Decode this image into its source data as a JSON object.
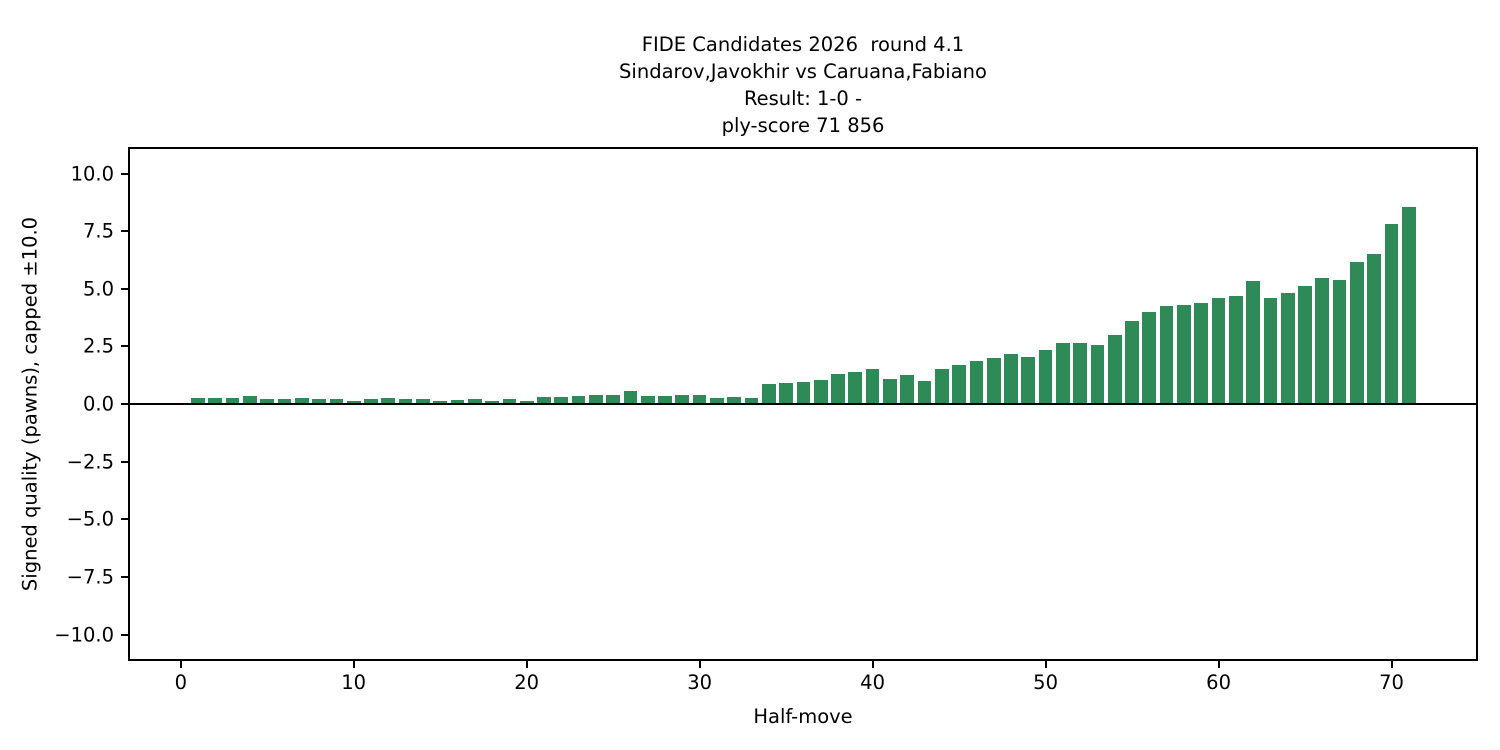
{
  "chart_data": {
    "type": "bar",
    "title_lines": [
      "FIDE Candidates 2026  round 4.1",
      "Sindarov,Javokhir vs Caruana,Fabiano",
      "Result: 1-0 -",
      "ply-score 71 856"
    ],
    "xlabel": "Half-move",
    "ylabel": "Signed quality (pawns), capped ±10.0",
    "x_start": 1,
    "values": [
      0.25,
      0.25,
      0.28,
      0.35,
      0.22,
      0.22,
      0.28,
      0.22,
      0.2,
      0.15,
      0.2,
      0.28,
      0.2,
      0.22,
      0.12,
      0.18,
      0.2,
      0.15,
      0.2,
      0.15,
      0.3,
      0.3,
      0.36,
      0.41,
      0.4,
      0.55,
      0.35,
      0.36,
      0.4,
      0.41,
      0.28,
      0.3,
      0.26,
      0.85,
      0.9,
      0.95,
      1.05,
      1.3,
      1.4,
      1.5,
      1.1,
      1.25,
      1.0,
      1.5,
      1.7,
      1.85,
      2.0,
      2.15,
      2.05,
      2.35,
      2.65,
      2.65,
      2.55,
      3.0,
      3.6,
      4.0,
      4.25,
      4.3,
      4.4,
      4.6,
      4.7,
      5.35,
      4.6,
      4.8,
      5.1,
      5.45,
      5.4,
      6.15,
      6.5,
      7.8,
      8.55
    ],
    "xticks": [
      0,
      10,
      20,
      30,
      40,
      50,
      60,
      70
    ],
    "yticks": [
      10.0,
      7.5,
      5.0,
      2.5,
      0.0,
      -2.5,
      -5.0,
      -7.5,
      -10.0
    ],
    "xlim": [
      -3.05,
      75.0
    ],
    "ylim": [
      -11.15,
      11.15
    ],
    "bar_width": 0.8,
    "bar_color": "#2e8b57",
    "zero_line": true,
    "grid": false,
    "legend": false,
    "background_color": "#ffffff",
    "axis_color": "#000000"
  }
}
